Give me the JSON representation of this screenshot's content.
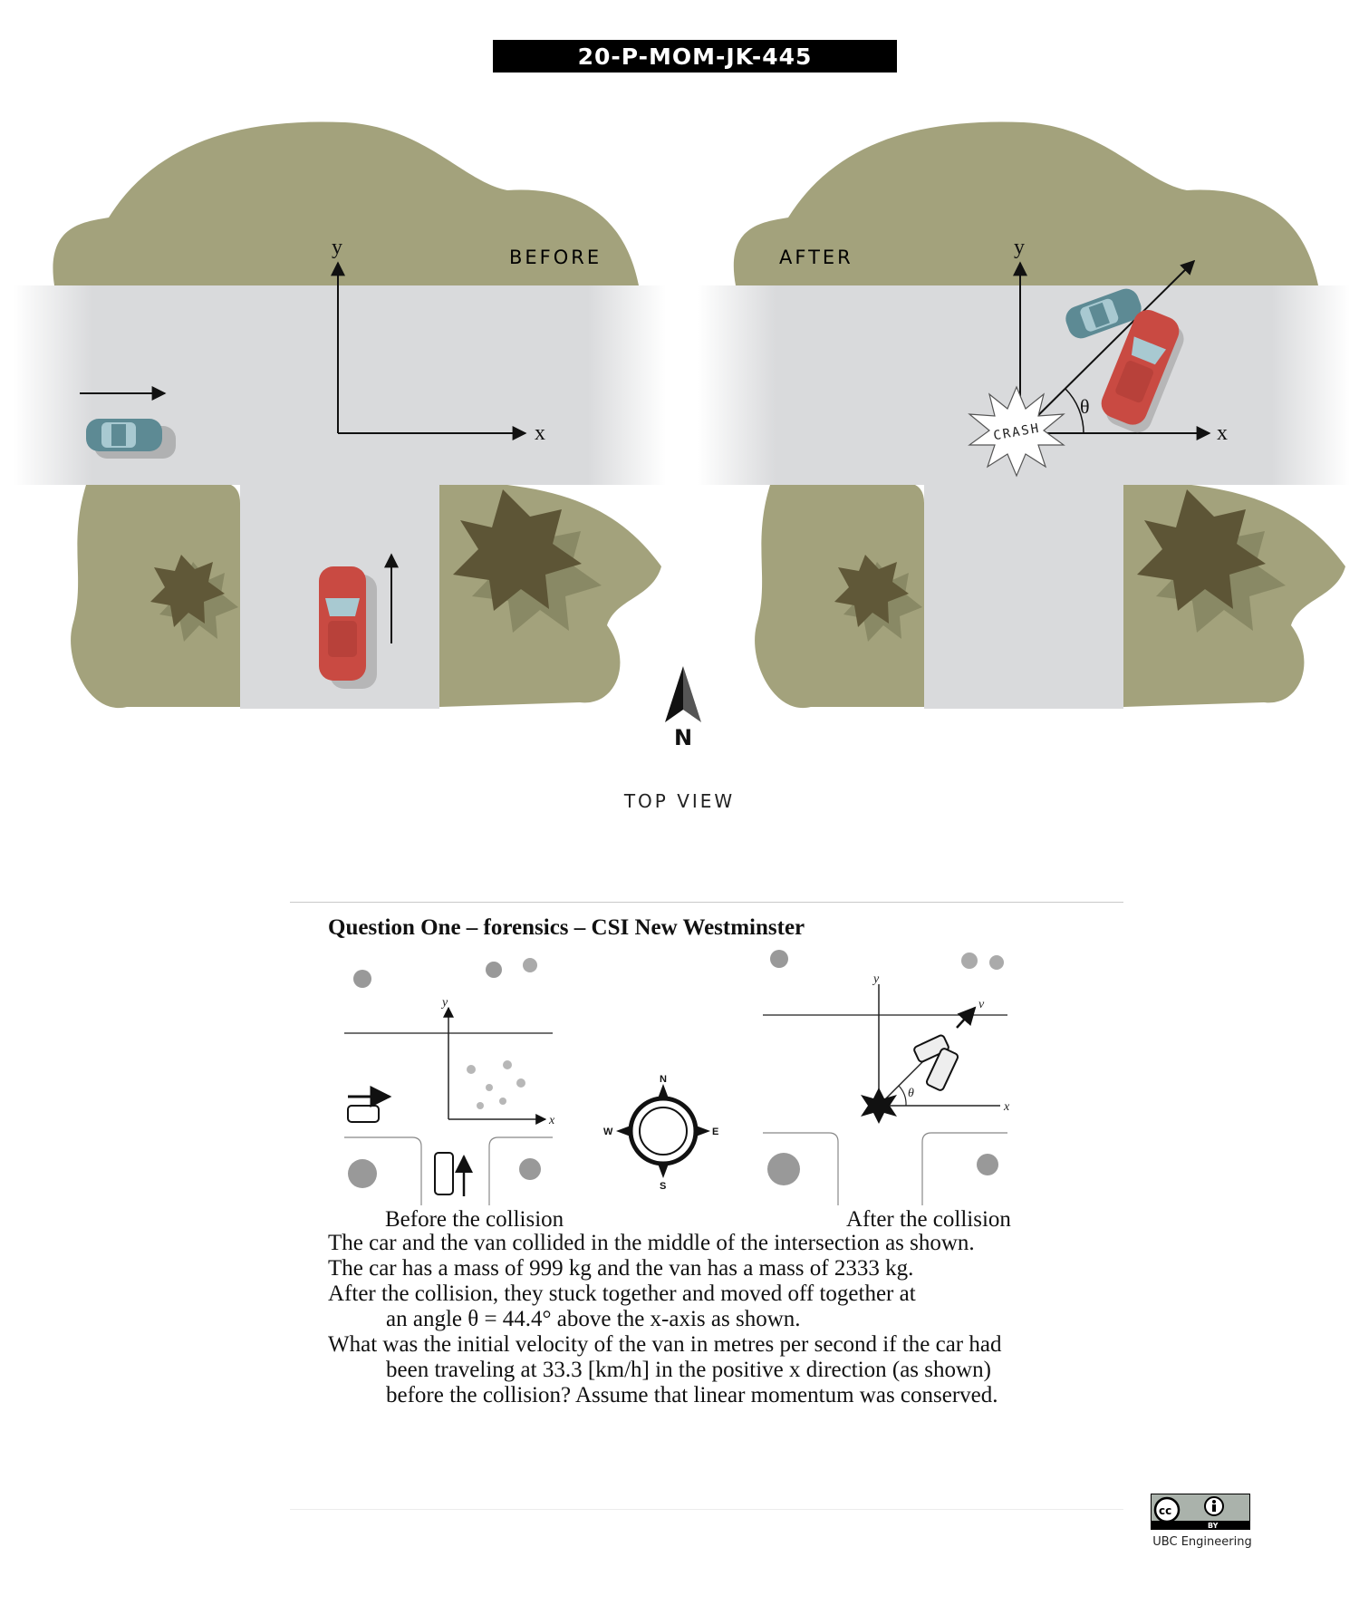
{
  "header": {
    "problem_code": "20-P-MOM-JK-445"
  },
  "scene": {
    "before_label": "BEFORE",
    "after_label": "AFTER",
    "axis_x": "x",
    "axis_y": "y",
    "angle_symbol": "θ",
    "crash_text": "CRASH",
    "compass_label": "N",
    "view_label": "TOP VIEW",
    "colors": {
      "grass": "#a3a27c",
      "road": "#d9dadc",
      "car": "#c94a42",
      "van": "#5d8a94"
    }
  },
  "question": {
    "title": "Question One – forensics – CSI New Westminster",
    "caption_before": "Before the collision",
    "caption_after": "After the collision",
    "sketch_compass": {
      "n": "N",
      "s": "S",
      "e": "E",
      "w": "W"
    },
    "sketch_x": "x",
    "sketch_y": "y",
    "sketch_v": "v",
    "sketch_theta": "θ",
    "lines": [
      "The car and the van collided in the middle of the intersection as shown.",
      "The car has a mass of 999 kg and the van has a mass of 2333 kg.",
      "After the collision, they stuck together and moved off together at",
      "an angle θ = 44.4° above the x-axis as shown.",
      "What was the initial velocity of the van in metres per second if the car had",
      "been traveling at 33.3 [km/h] in the positive x direction (as shown)",
      "before the collision?  Assume that linear momentum was conserved."
    ]
  },
  "footer": {
    "license_text": "UBC Engineering",
    "cc_by": "BY"
  }
}
